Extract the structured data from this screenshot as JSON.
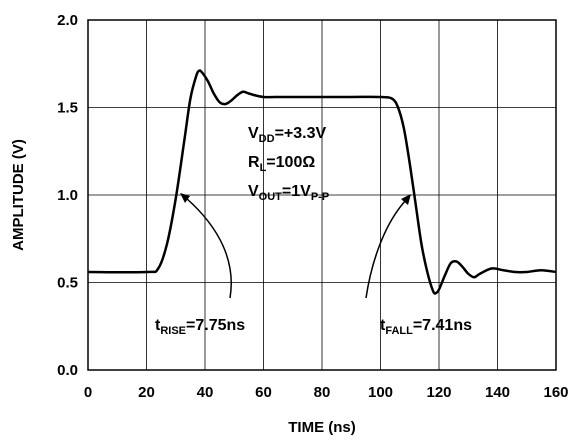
{
  "chart_data": {
    "type": "line",
    "title": "",
    "xlabel": "TIME (ns)",
    "ylabel": "AMPLITUDE (V)",
    "xlim": [
      0,
      160
    ],
    "ylim": [
      0.0,
      2.0
    ],
    "xticks": [
      "0",
      "20",
      "40",
      "60",
      "80",
      "100",
      "120",
      "140",
      "160"
    ],
    "yticks": [
      "0.0",
      "0.5",
      "1.0",
      "1.5",
      "2.0"
    ],
    "grid": true,
    "series": [
      {
        "x": [
          0,
          20,
          24,
          27,
          30,
          33,
          35,
          37,
          38,
          39,
          41,
          43,
          45,
          47,
          49,
          51,
          53,
          55,
          57,
          60,
          64,
          70,
          80,
          90,
          100,
          104,
          106,
          108,
          110,
          112,
          114,
          116,
          118,
          119,
          120,
          122,
          124,
          126,
          128,
          130,
          132,
          134,
          138,
          142,
          146,
          150,
          155,
          160
        ],
        "y": [
          0.56,
          0.56,
          0.58,
          0.72,
          0.98,
          1.32,
          1.55,
          1.68,
          1.71,
          1.7,
          1.65,
          1.58,
          1.53,
          1.52,
          1.54,
          1.57,
          1.59,
          1.58,
          1.57,
          1.56,
          1.56,
          1.56,
          1.56,
          1.56,
          1.56,
          1.55,
          1.5,
          1.38,
          1.18,
          0.95,
          0.72,
          0.56,
          0.45,
          0.44,
          0.46,
          0.54,
          0.61,
          0.62,
          0.59,
          0.55,
          0.53,
          0.55,
          0.58,
          0.57,
          0.56,
          0.56,
          0.57,
          0.56
        ]
      }
    ],
    "annotations": {
      "vdd": {
        "main": "V",
        "sub": "DD",
        "rest": "=+3.3V"
      },
      "rl": {
        "main": "R",
        "sub": "L",
        "rest": "=100Ω"
      },
      "vout": {
        "main": "V",
        "sub": "OUT",
        "rest": "=1V",
        "sub2": "P-P"
      },
      "trise": {
        "main": "t",
        "sub": "RISE",
        "rest": "=7.75ns"
      },
      "tfall": {
        "main": "t",
        "sub": "FALL",
        "rest": "=7.41ns"
      }
    }
  }
}
